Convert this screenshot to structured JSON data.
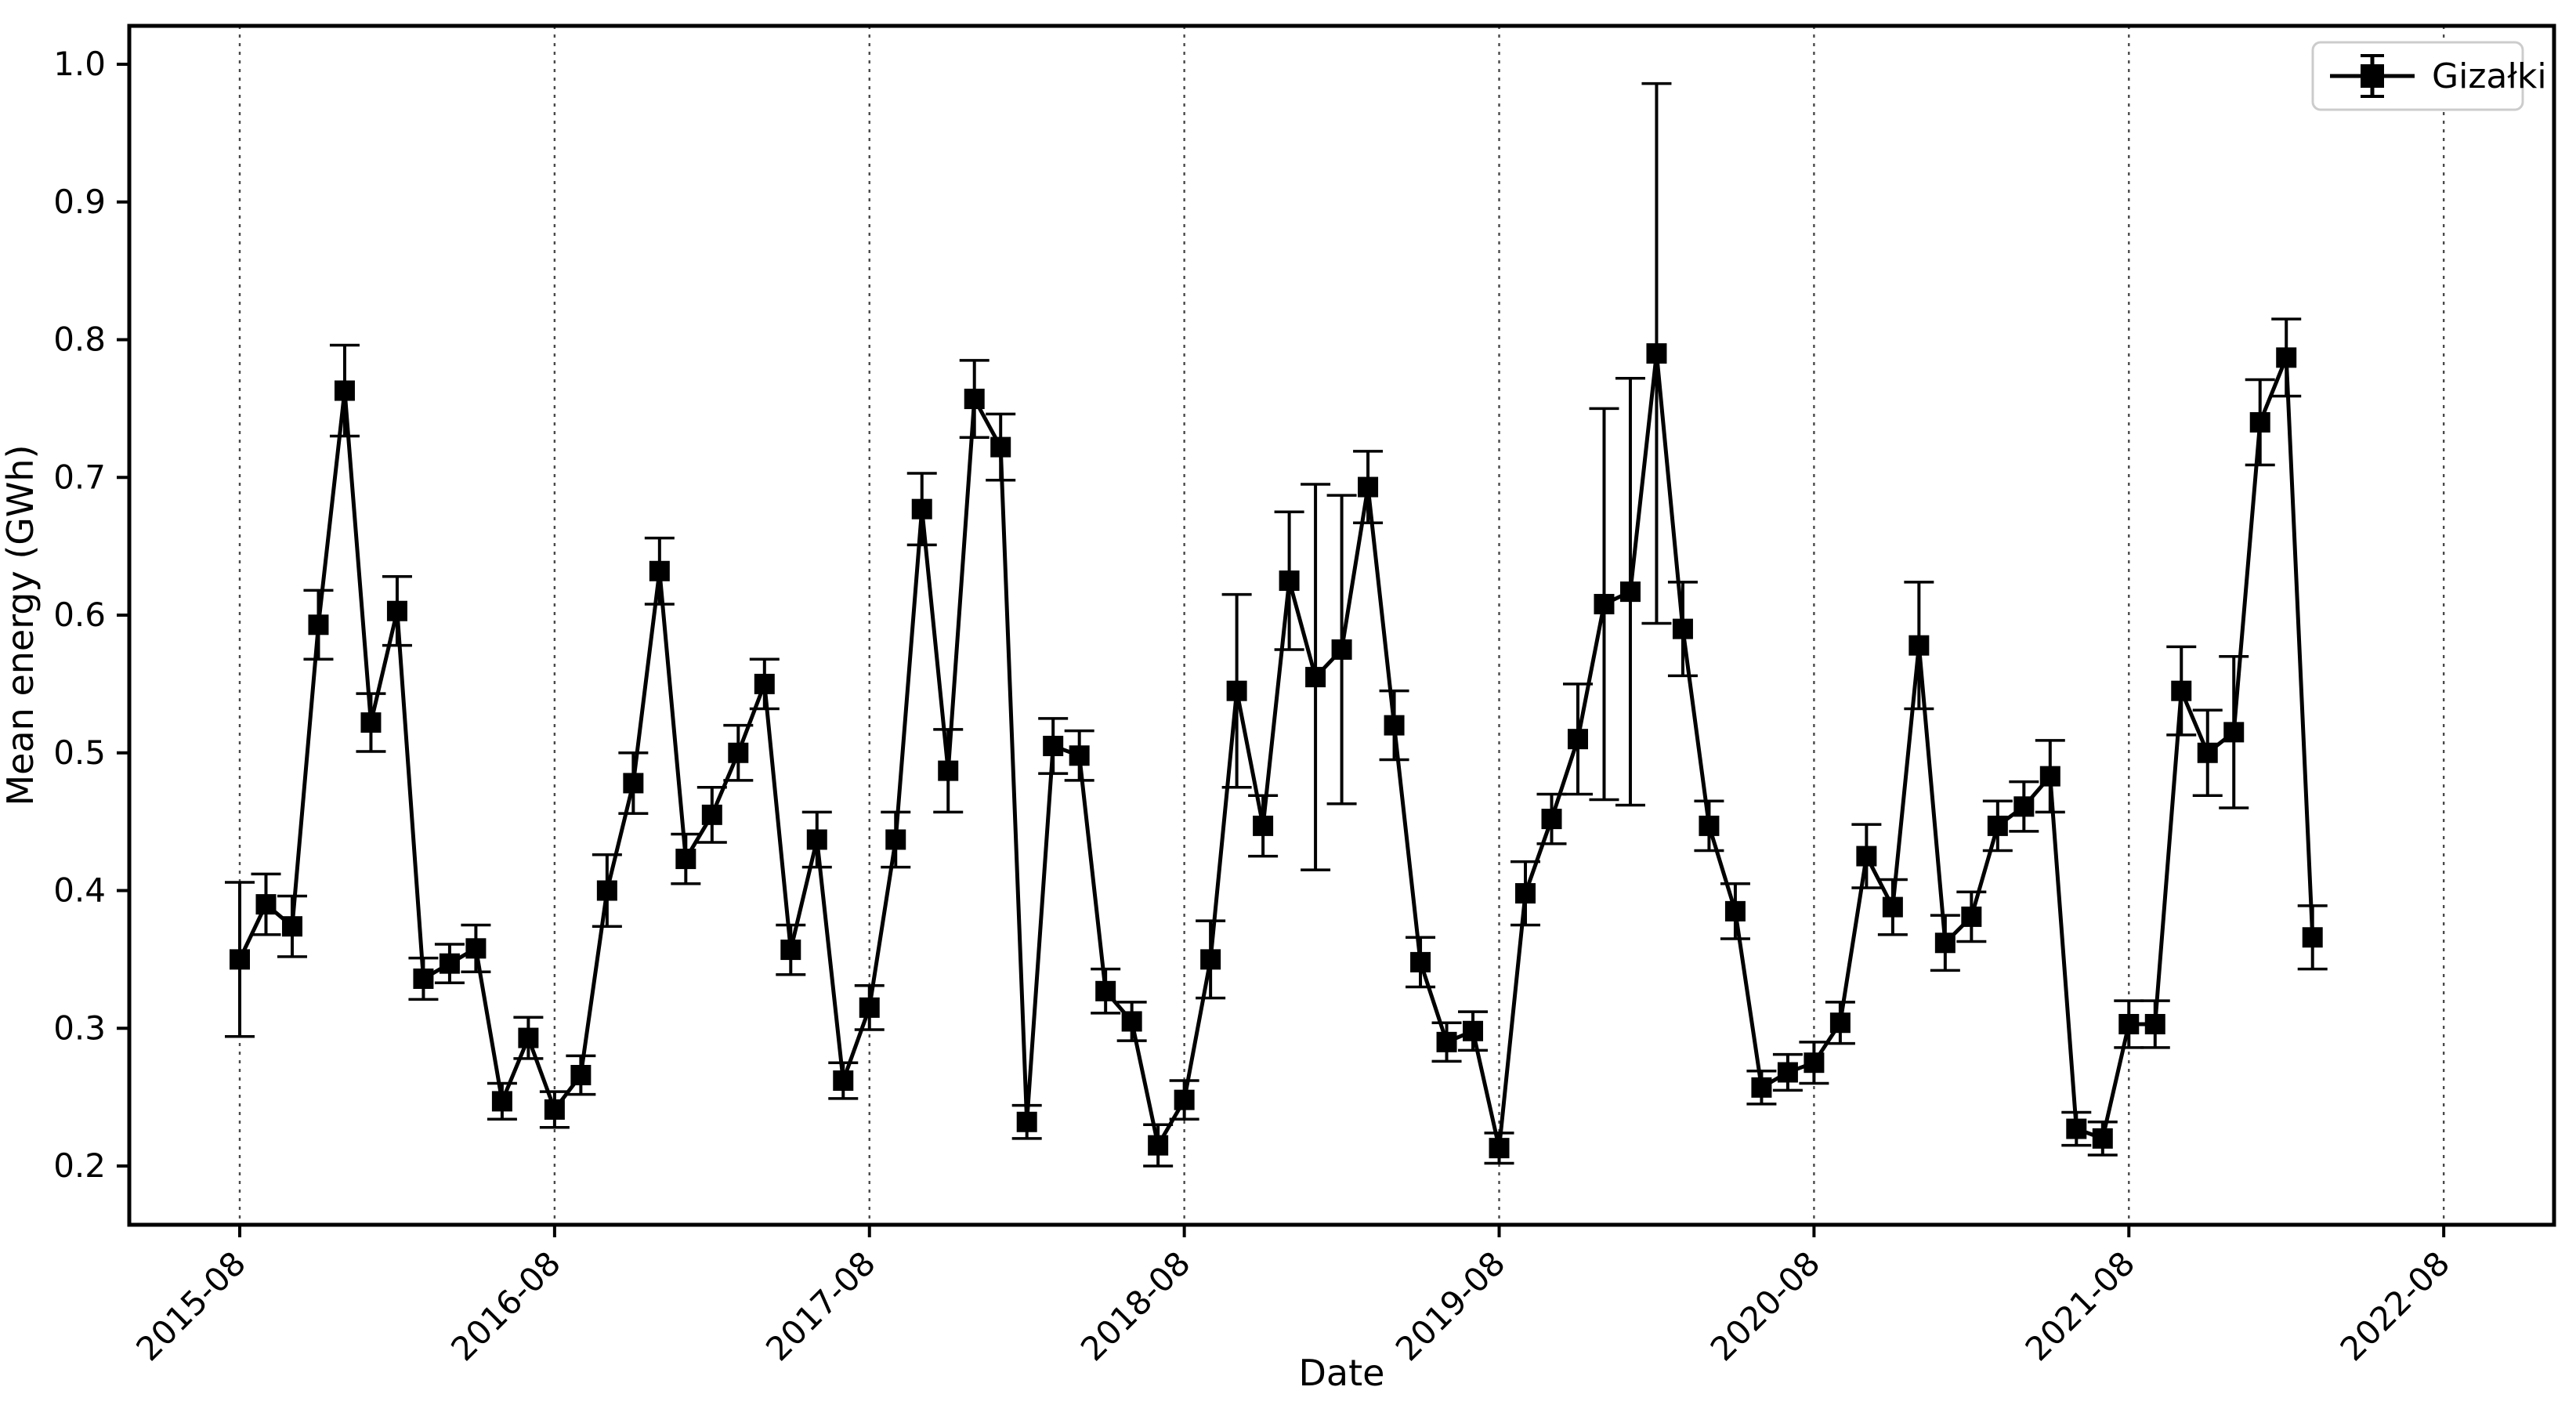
{
  "figure": {
    "background": "#ffffff",
    "plot_background": "#ffffff"
  },
  "styles": {
    "series_color": "#000000",
    "grid_color": "#4a4a4a",
    "axis_color": "#000000",
    "legend_border_color": "#cccccc",
    "legend_background": "#ffffff"
  },
  "chart_data": {
    "type": "line",
    "title": "",
    "xlabel": "Date",
    "ylabel": "Mean energy (GWh)",
    "grid": {
      "vertical": true,
      "horizontal": false,
      "style": "dashed"
    },
    "legend": {
      "position": "upper right",
      "entries": [
        {
          "label": "Gizałki",
          "marker": "square",
          "color": "#000000",
          "has_error_bars": true
        }
      ]
    },
    "x_tick_labels": [
      "2015-08",
      "2016-08",
      "2017-08",
      "2018-08",
      "2019-08",
      "2020-08",
      "2021-08",
      "2022-08"
    ],
    "y_tick_labels": [
      "0.2",
      "0.3",
      "0.4",
      "0.5",
      "0.6",
      "0.7",
      "0.8",
      "0.9",
      "1.0"
    ],
    "y_ticks": [
      0.2,
      0.3,
      0.4,
      0.5,
      0.6,
      0.7,
      0.8,
      0.9,
      1.0
    ],
    "ylim": [
      0.157,
      1.028
    ],
    "x_axis_type": "monthly dates",
    "x_range": [
      "2015-08",
      "2022-03"
    ],
    "series": [
      {
        "name": "Gizałki",
        "color": "#000000",
        "marker": "square",
        "line_style": "solid",
        "error_bars": true,
        "dates": [
          "2015-08",
          "2015-09",
          "2015-10",
          "2015-11",
          "2015-12",
          "2016-01",
          "2016-02",
          "2016-03",
          "2016-04",
          "2016-05",
          "2016-06",
          "2016-07",
          "2016-08",
          "2016-09",
          "2016-10",
          "2016-11",
          "2016-12",
          "2017-01",
          "2017-02",
          "2017-03",
          "2017-04",
          "2017-05",
          "2017-06",
          "2017-07",
          "2017-08",
          "2017-09",
          "2017-10",
          "2017-11",
          "2017-12",
          "2018-01",
          "2018-02",
          "2018-03",
          "2018-04",
          "2018-05",
          "2018-06",
          "2018-07",
          "2018-08",
          "2018-09",
          "2018-10",
          "2018-11",
          "2018-12",
          "2019-01",
          "2019-02",
          "2019-03",
          "2019-04",
          "2019-05",
          "2019-06",
          "2019-07",
          "2019-08",
          "2019-09",
          "2019-10",
          "2019-11",
          "2019-12",
          "2020-01",
          "2020-02",
          "2020-03",
          "2020-04",
          "2020-05",
          "2020-06",
          "2020-07",
          "2020-08",
          "2020-09",
          "2020-10",
          "2020-11",
          "2020-12",
          "2021-01",
          "2021-02",
          "2021-03",
          "2021-04",
          "2021-05",
          "2021-06",
          "2021-07",
          "2021-08",
          "2021-09",
          "2021-10",
          "2021-11",
          "2021-12",
          "2022-01",
          "2022-02",
          "2022-03"
        ],
        "values": [
          0.35,
          0.39,
          0.374,
          0.593,
          0.763,
          0.522,
          0.603,
          0.336,
          0.347,
          0.358,
          0.247,
          0.293,
          0.241,
          0.266,
          0.4,
          0.478,
          0.632,
          0.423,
          0.455,
          0.5,
          0.55,
          0.357,
          0.437,
          0.262,
          0.315,
          0.437,
          0.677,
          0.487,
          0.757,
          0.722,
          0.232,
          0.505,
          0.498,
          0.327,
          0.305,
          0.215,
          0.248,
          0.35,
          0.545,
          0.447,
          0.625,
          0.555,
          0.575,
          0.693,
          0.52,
          0.348,
          0.29,
          0.298,
          0.213,
          0.398,
          0.452,
          0.51,
          0.608,
          0.617,
          0.79,
          0.59,
          0.447,
          0.385,
          0.257,
          0.268,
          0.275,
          0.304,
          0.425,
          0.388,
          0.578,
          0.362,
          0.381,
          0.447,
          0.461,
          0.483,
          0.227,
          0.22,
          0.303,
          0.303,
          0.545,
          0.5,
          0.515,
          0.74,
          0.787,
          0.366
        ],
        "errors": [
          0.056,
          0.022,
          0.022,
          0.025,
          0.033,
          0.021,
          0.025,
          0.015,
          0.014,
          0.017,
          0.013,
          0.015,
          0.013,
          0.014,
          0.026,
          0.022,
          0.024,
          0.018,
          0.02,
          0.02,
          0.018,
          0.018,
          0.02,
          0.013,
          0.016,
          0.02,
          0.026,
          0.03,
          0.028,
          0.024,
          0.012,
          0.02,
          0.018,
          0.016,
          0.014,
          0.015,
          0.014,
          0.028,
          0.07,
          0.022,
          0.05,
          0.14,
          0.112,
          0.026,
          0.025,
          0.018,
          0.014,
          0.014,
          0.011,
          0.023,
          0.018,
          0.04,
          0.142,
          0.155,
          0.196,
          0.034,
          0.018,
          0.02,
          0.012,
          0.013,
          0.015,
          0.015,
          0.023,
          0.02,
          0.046,
          0.02,
          0.018,
          0.018,
          0.018,
          0.026,
          0.012,
          0.012,
          0.017,
          0.017,
          0.032,
          0.031,
          0.055,
          0.031,
          0.028,
          0.023
        ]
      }
    ]
  }
}
